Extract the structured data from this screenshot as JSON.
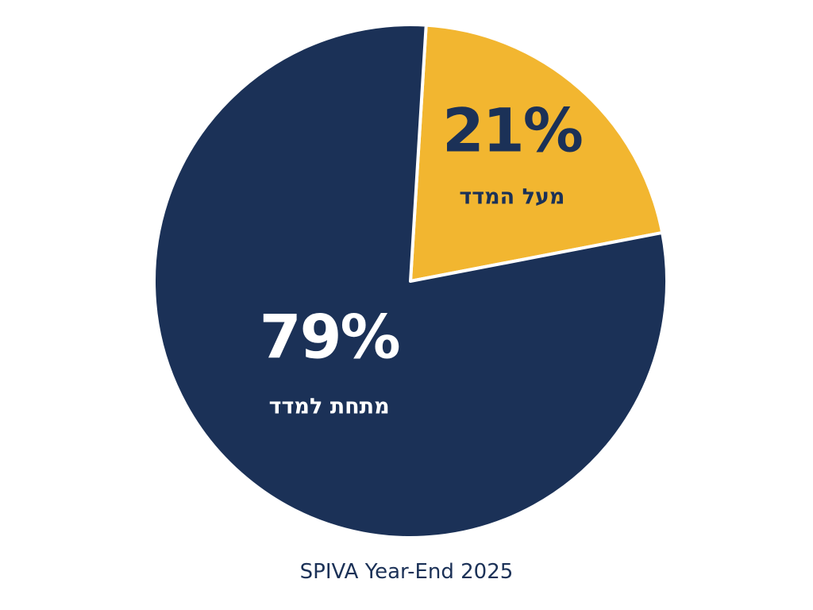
{
  "chart_data": {
    "type": "pie",
    "caption": "SPIVA Year-End 2025",
    "slices": [
      {
        "label": "מעל המדד",
        "value": 21,
        "value_label": "21%",
        "color": "#F2B630",
        "text_color": "#1B3157"
      },
      {
        "label": "מתחת למדד",
        "value": 79,
        "value_label": "79%",
        "color": "#1B3157",
        "text_color": "#FFFFFF"
      }
    ],
    "separator_color": "#FFFFFF",
    "caption_color": "#1B3157"
  }
}
